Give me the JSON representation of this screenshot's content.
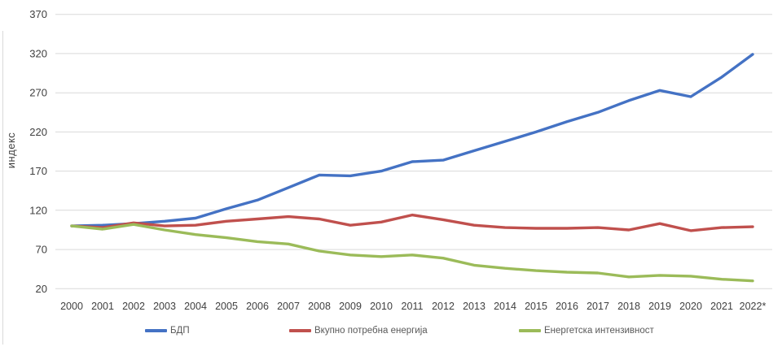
{
  "chart_data": {
    "type": "line",
    "title": "",
    "xlabel": "",
    "ylabel": "индекс",
    "ylim": [
      20,
      370
    ],
    "yticks": [
      20,
      70,
      120,
      170,
      220,
      270,
      320,
      370
    ],
    "grid": "horizontal",
    "legend_position": "bottom",
    "x_labels": [
      "2000",
      "2001",
      "2002",
      "2003",
      "2004",
      "2005",
      "2006",
      "2007",
      "2008",
      "2009",
      "2010",
      "2011",
      "2012",
      "2013",
      "2014",
      "2015",
      "2016",
      "2017",
      "2018",
      "2019",
      "2020",
      "2021",
      "2022*"
    ],
    "series": [
      {
        "name": "БДП",
        "color": "#4472C4",
        "values": [
          100,
          101,
          103,
          106,
          110,
          122,
          133,
          149,
          165,
          164,
          170,
          182,
          184,
          196,
          208,
          220,
          233,
          245,
          260,
          273,
          265,
          290,
          319
        ]
      },
      {
        "name": "Вкупно потребна енергија",
        "color": "#C0504D",
        "values": [
          100,
          98,
          104,
          100,
          101,
          106,
          109,
          112,
          109,
          101,
          105,
          114,
          108,
          101,
          98,
          97,
          97,
          98,
          95,
          103,
          94,
          98,
          99
        ]
      },
      {
        "name": "Енергетска интензивност",
        "color": "#9BBB59",
        "values": [
          100,
          96,
          102,
          95,
          89,
          85,
          80,
          77,
          68,
          63,
          61,
          63,
          59,
          50,
          46,
          43,
          41,
          40,
          35,
          37,
          36,
          32,
          30
        ]
      }
    ]
  }
}
